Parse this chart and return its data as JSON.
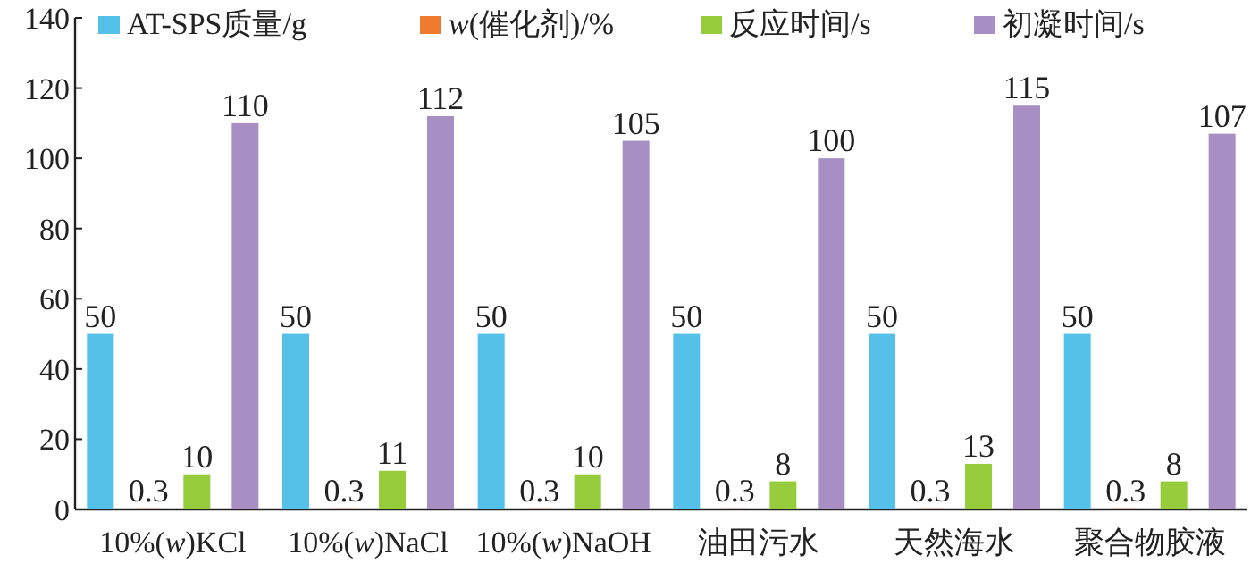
{
  "chart_data": {
    "type": "bar",
    "categories": [
      "10%(w)KCl",
      "10%(w)NaCl",
      "10%(w)NaOH",
      "油田污水",
      "天然海水",
      "聚合物胶液"
    ],
    "series": [
      {
        "name": "AT-SPS质量/g",
        "color": "#55c1e9",
        "values": [
          50,
          50,
          50,
          50,
          50,
          50
        ]
      },
      {
        "name": "w(催化剂)/%",
        "color": "#ef7b2e",
        "values": [
          0.3,
          0.3,
          0.3,
          0.3,
          0.3,
          0.3
        ]
      },
      {
        "name": "反应时间/s",
        "color": "#97cc3c",
        "values": [
          10,
          11,
          10,
          8,
          13,
          8
        ]
      },
      {
        "name": "初凝时间/s",
        "color": "#a78fc3",
        "values": [
          110,
          112,
          105,
          100,
          115,
          107
        ]
      }
    ],
    "ylim": [
      0,
      140
    ],
    "yticks": [
      0,
      20,
      40,
      60,
      80,
      100,
      120,
      140
    ],
    "data_labels": true,
    "legend": "top",
    "grid": false
  }
}
